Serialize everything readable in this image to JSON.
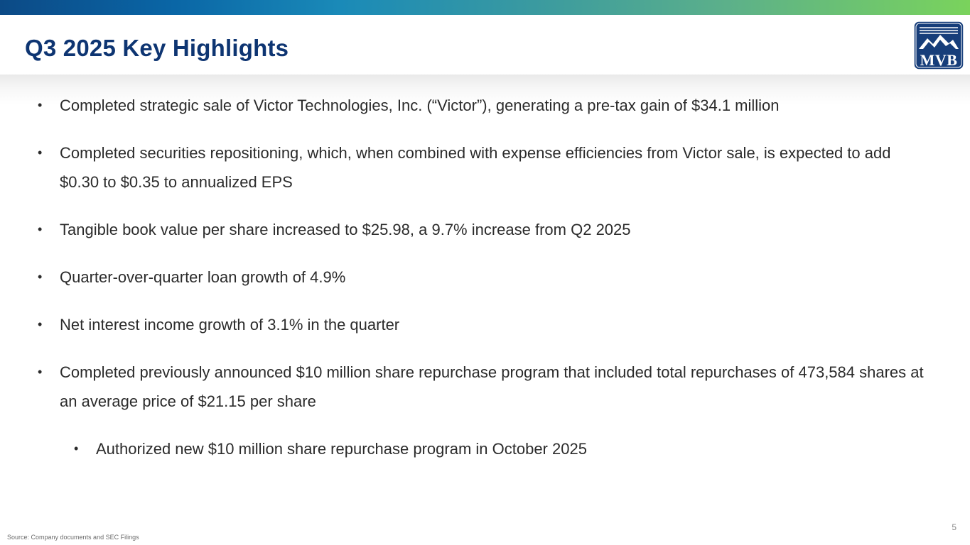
{
  "slide": {
    "title": "Q3 2025 Key Highlights",
    "logo": {
      "text": "MVB",
      "icon": "mountain-logo-icon",
      "color": "#173e7a"
    },
    "bullets": [
      {
        "text": "Completed strategic sale of Victor Technologies, Inc. (“Victor”), generating a pre-tax gain of $34.1 million",
        "level": 1
      },
      {
        "text": "Completed securities repositioning, which, when combined with expense efficiencies from Victor sale, is expected to add $0.30 to $0.35 to annualized EPS",
        "level": 1
      },
      {
        "text": "Tangible book value per share increased to $25.98, a 9.7% increase from Q2 2025",
        "level": 1
      },
      {
        "text": "Quarter-over-quarter loan growth of 4.9%",
        "level": 1
      },
      {
        "text": "Net interest income growth of 3.1% in the quarter",
        "level": 1
      },
      {
        "text": "Completed previously announced $10 million share repurchase program that included total repurchases of 473,584 shares at an average price of $21.15 per share",
        "level": 1
      },
      {
        "text": "Authorized new $10 million share repurchase program in October 2025",
        "level": 2
      }
    ],
    "bullet_marker": "•",
    "footer": {
      "source": "Source: Company documents and SEC Filings",
      "page_number": "5"
    },
    "colors": {
      "title": "#0e3572",
      "body_text": "#2b2b2b",
      "band_start": "#0c4a86",
      "band_end": "#7ad35c"
    }
  }
}
